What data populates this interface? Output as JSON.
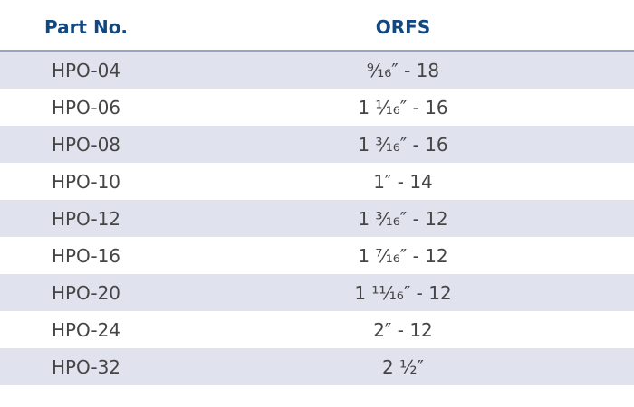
{
  "table": {
    "headers": {
      "part_no": "Part No.",
      "orfs": "ORFS"
    },
    "rows": [
      {
        "part_no": "HPO-04",
        "orfs": "⁹⁄₁₆″ - 18"
      },
      {
        "part_no": "HPO-06",
        "orfs": "1 ¹⁄₁₆″ - 16"
      },
      {
        "part_no": "HPO-08",
        "orfs": "1 ³⁄₁₆″ - 16"
      },
      {
        "part_no": "HPO-10",
        "orfs": "1″ - 14"
      },
      {
        "part_no": "HPO-12",
        "orfs": "1 ³⁄₁₆″ - 12"
      },
      {
        "part_no": "HPO-16",
        "orfs": "1 ⁷⁄₁₆″ - 12"
      },
      {
        "part_no": "HPO-20",
        "orfs": "1 ¹¹⁄₁₆″ - 12"
      },
      {
        "part_no": "HPO-24",
        "orfs": "2″ - 12"
      },
      {
        "part_no": "HPO-32",
        "orfs": "2 ½″"
      }
    ]
  },
  "colors": {
    "header_text": "#12477f",
    "row_shade": "#e0e3ee",
    "body_text": "#454545",
    "header_rule": "#9aa3c2"
  }
}
